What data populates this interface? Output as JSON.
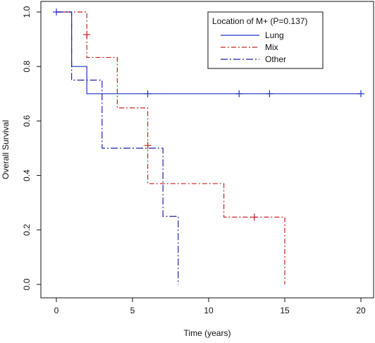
{
  "chart_data": {
    "type": "line",
    "subtype": "kaplan-meier-step",
    "xlabel": "Time (years)",
    "ylabel": "Overall Survival",
    "xlim": [
      0,
      20
    ],
    "ylim": [
      0,
      1
    ],
    "x_ticks": [
      0,
      5,
      10,
      15,
      20
    ],
    "y_ticks": [
      0.0,
      0.2,
      0.4,
      0.6,
      0.8,
      1.0
    ],
    "y_tick_labels": [
      "0.0",
      "0.2",
      "0.4",
      "0.6",
      "0.8",
      "1.0"
    ],
    "grid": false,
    "legend": {
      "title": "Location of M+ (P=0.137)",
      "placement": "top-right"
    },
    "series": [
      {
        "name": "Lung",
        "color": "#2233cc",
        "dash": "solid",
        "steps": [
          [
            0,
            1.0
          ],
          [
            1,
            0.8
          ],
          [
            2,
            0.7
          ],
          [
            20,
            0.7
          ]
        ],
        "censored": [
          [
            0,
            1.0
          ],
          [
            6,
            0.7
          ],
          [
            12,
            0.7
          ],
          [
            14,
            0.7
          ],
          [
            20,
            0.7
          ]
        ]
      },
      {
        "name": "Mix",
        "color": "#cc2222",
        "dash": "dashdot",
        "steps": [
          [
            0,
            1.0
          ],
          [
            2,
            0.833
          ],
          [
            4,
            0.648
          ],
          [
            6,
            0.37
          ],
          [
            11,
            0.247
          ],
          [
            15,
            0.0
          ]
        ],
        "censored": [
          [
            2,
            0.917
          ],
          [
            6,
            0.51
          ],
          [
            13,
            0.247
          ]
        ]
      },
      {
        "name": "Other",
        "color": "#2222aa",
        "dash": "longdashdot",
        "steps": [
          [
            0,
            1.0
          ],
          [
            1,
            0.75
          ],
          [
            3,
            0.5
          ],
          [
            7,
            0.25
          ],
          [
            8,
            0.0
          ]
        ],
        "censored": []
      }
    ]
  }
}
